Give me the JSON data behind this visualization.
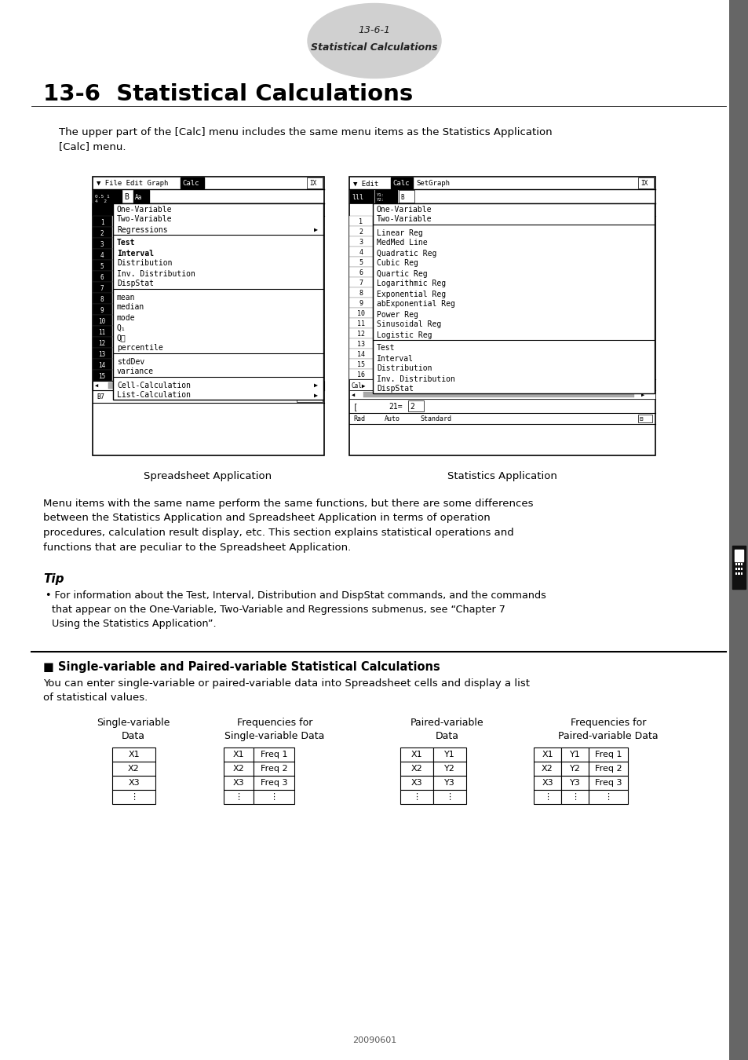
{
  "page_header_number": "13-6-1",
  "page_header_text": "Statistical Calculations",
  "main_title": "13-6  Statistical Calculations",
  "intro_text": "The upper part of the [Calc] menu includes the same menu items as the Statistics Application\n[Calc] menu.",
  "caption_left": "Spreadsheet Application",
  "caption_right": "Statistics Application",
  "body_text1": "Menu items with the same name perform the same functions, but there are some differences\nbetween the Statistics Application and Spreadsheet Application in terms of operation\nprocedures, calculation result display, etc. This section explains statistical operations and\nfunctions that are peculiar to the Spreadsheet Application.",
  "tip_title": "Tip",
  "tip_bullet": "• For information about the Test, Interval, Distribution and DispStat commands, and the commands\n  that appear on the One-Variable, Two-Variable and Regressions submenus, see “Chapter 7\n  Using the Statistics Application”.",
  "section_title": "■ Single-variable and Paired-variable Statistical Calculations",
  "section_text": "You can enter single-variable or paired-variable data into Spreadsheet cells and display a list\nof statistical values.",
  "col1_header": "Single-variable\nData",
  "col2_header": "Frequencies for\nSingle-variable Data",
  "col3_header": "Paired-variable\nData",
  "col4_header": "Frequencies for\nPaired-variable Data",
  "background_color": "#ffffff",
  "page_num": "20090601"
}
